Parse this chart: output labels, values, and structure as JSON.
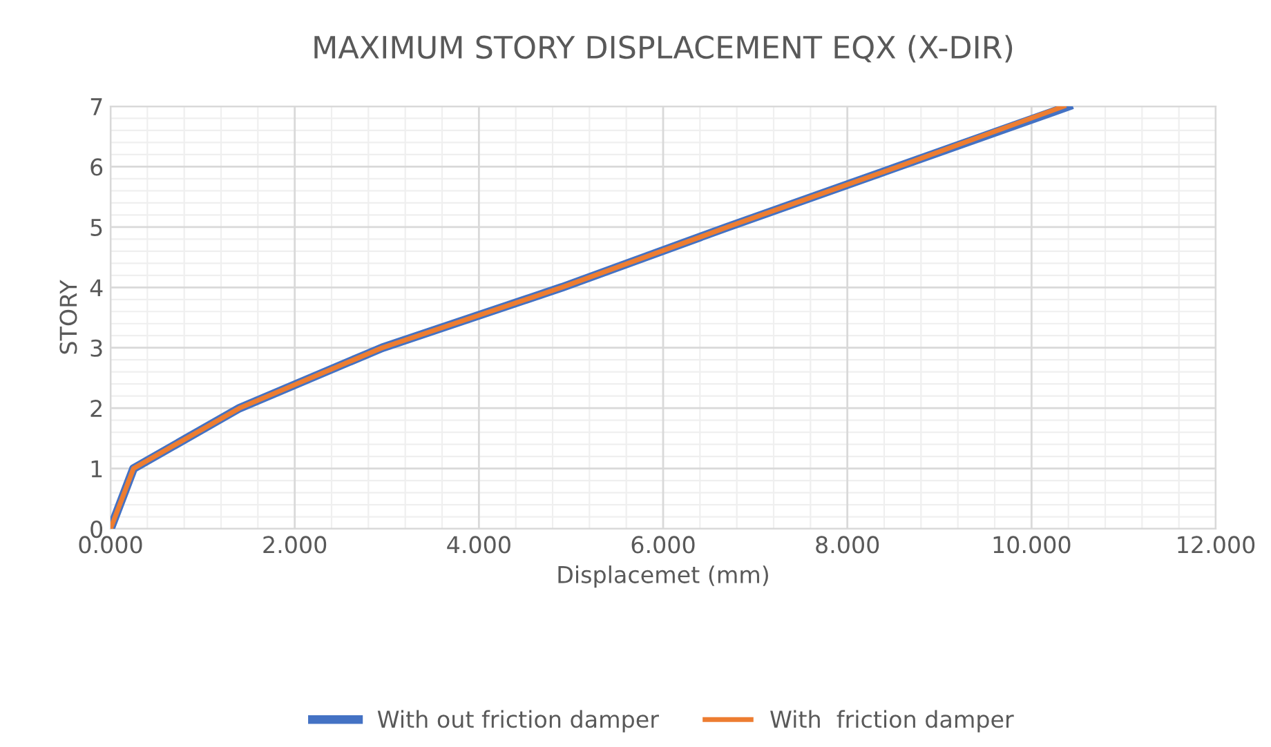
{
  "chart_data": {
    "type": "line",
    "title": "MAXIMUM STORY DISPLACEMENT EQX (X-DIR)",
    "xlabel": "Displacemet (mm)",
    "ylabel": "STORY",
    "series": [
      {
        "name": "With out friction damper",
        "color": "#4472c4",
        "x": [
          0.0,
          0.25,
          1.4,
          2.95,
          4.9,
          6.7,
          8.55,
          10.4
        ],
        "values": [
          0,
          1,
          2,
          3,
          4,
          5,
          6,
          7
        ]
      },
      {
        "name": "With  friction damper",
        "color": "#ed7d31",
        "x": [
          0.0,
          0.25,
          1.4,
          2.95,
          4.9,
          6.7,
          8.55,
          10.35
        ],
        "values": [
          0,
          1,
          2,
          3,
          4,
          5,
          6,
          7
        ]
      }
    ],
    "xlim": [
      0,
      12
    ],
    "xticks": [
      {
        "value": 0,
        "label": "0.000"
      },
      {
        "value": 2,
        "label": "2.000"
      },
      {
        "value": 4,
        "label": "4.000"
      },
      {
        "value": 6,
        "label": "6.000"
      },
      {
        "value": 8,
        "label": "8.000"
      },
      {
        "value": 10,
        "label": "10.000"
      },
      {
        "value": 12,
        "label": "12.000"
      }
    ],
    "ylim": [
      0,
      7
    ],
    "yticks": [
      0,
      1,
      2,
      3,
      4,
      5,
      6,
      7
    ],
    "grid": true,
    "legend": "bottom",
    "marker": "none",
    "line_style": "solid"
  }
}
